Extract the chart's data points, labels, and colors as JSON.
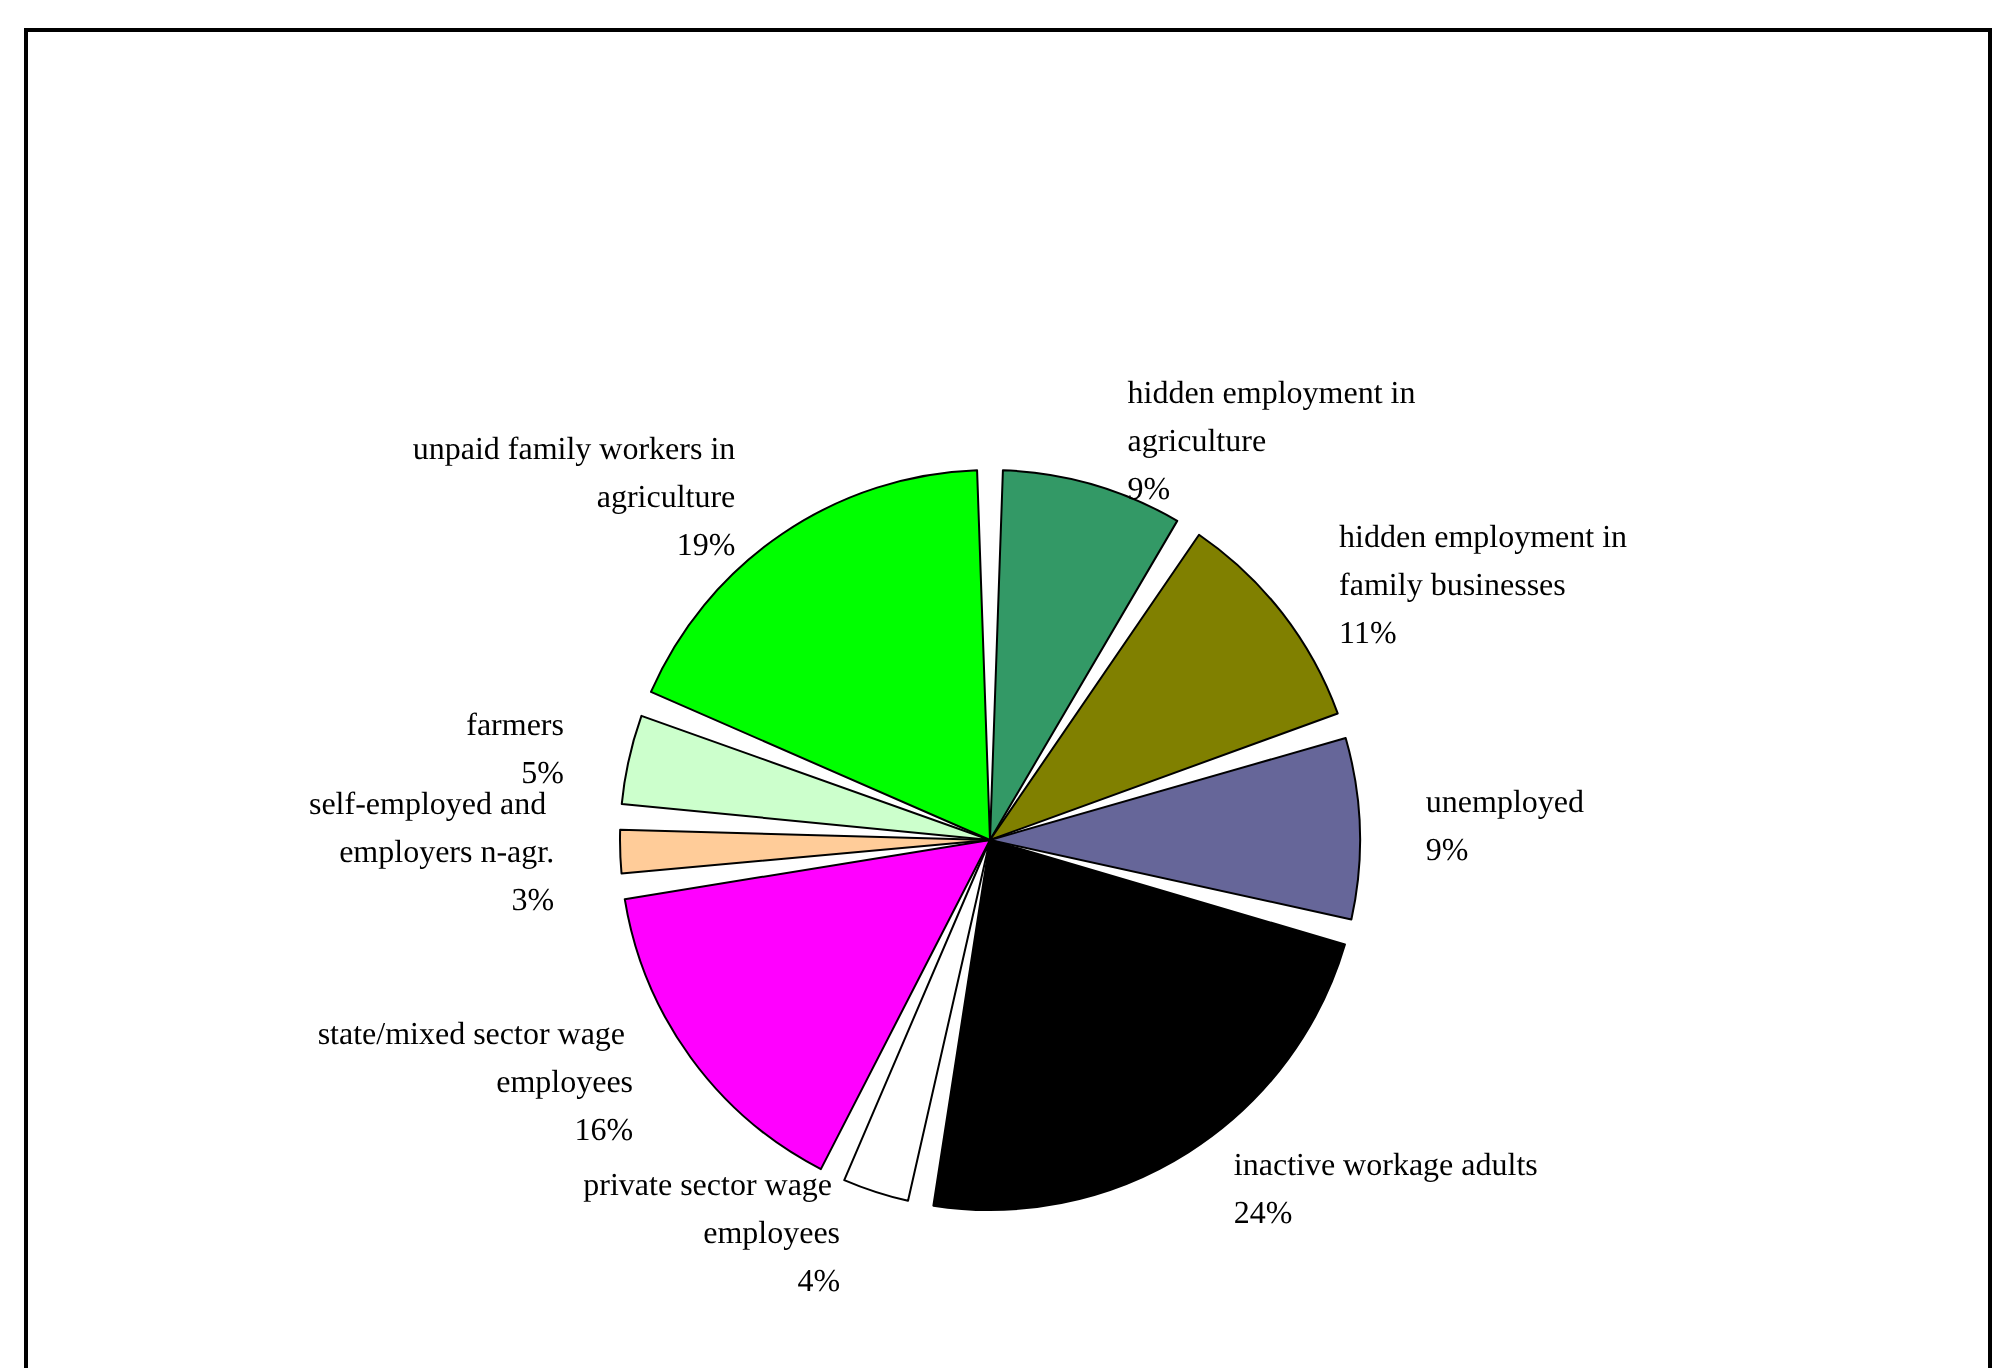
{
  "chart_data": {
    "type": "pie",
    "categories": [
      "hidden employment in agriculture",
      "hidden employment in family businesses",
      "unemployed",
      "inactive workage adults",
      "private sector wage employees",
      "state/mixed sector wage employees",
      "self-employed and employers n-agr.",
      "farmers",
      "unpaid family workers in agriculture"
    ],
    "values": [
      9,
      11,
      9,
      24,
      4,
      16,
      3,
      5,
      19
    ],
    "value_labels": [
      "9%",
      "11%",
      "9%",
      "24%",
      "4%",
      "16%",
      "3%",
      "5%",
      "19%"
    ],
    "colors": [
      "#339966",
      "#808000",
      "#666699",
      "#000000",
      "#ffffff",
      "#ff00ff",
      "#ffcc99",
      "#ccffcc",
      "#00ff00"
    ]
  }
}
